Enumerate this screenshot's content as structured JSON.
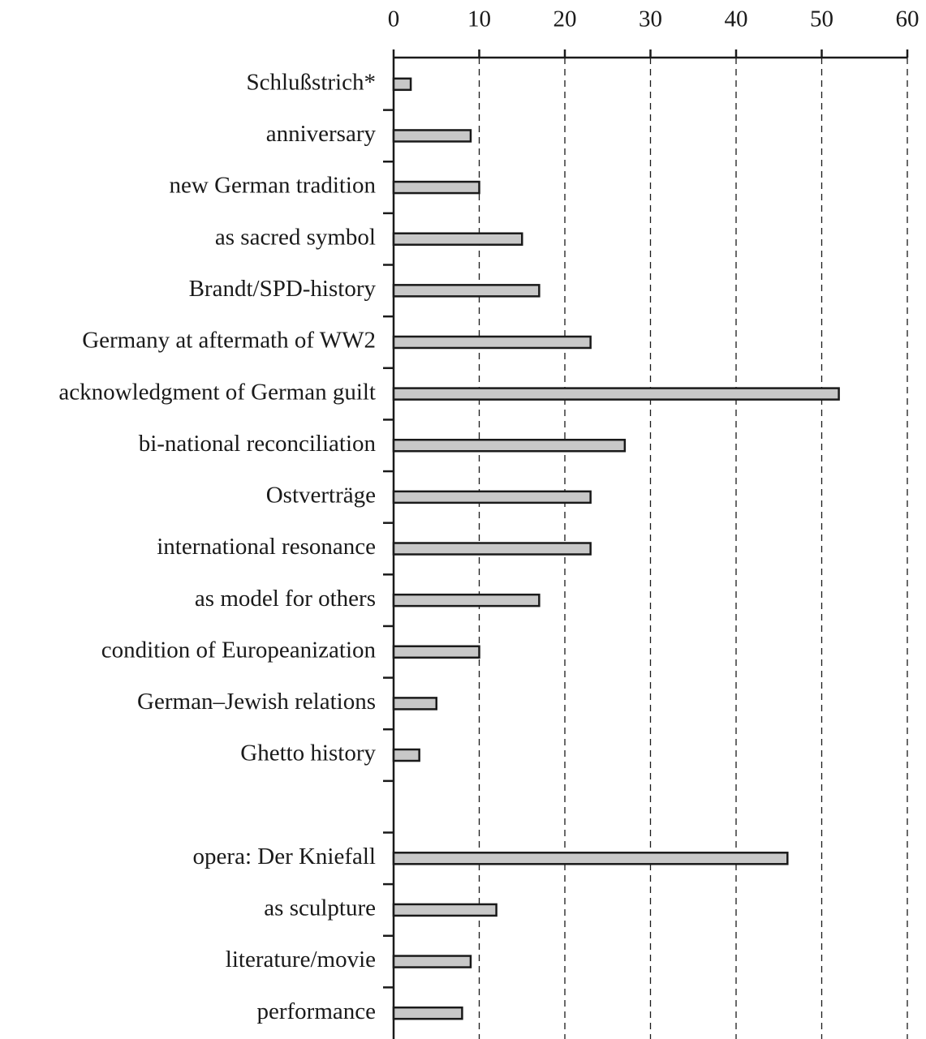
{
  "chart_data": {
    "type": "hbar",
    "categories": [
      "Schlußstrich*",
      "anniversary",
      "new German tradition",
      "as sacred symbol",
      "Brandt/SPD-history",
      "Germany at aftermath of WW2",
      "acknowledgment of German guilt",
      "bi-national reconciliation",
      "Ostverträge",
      "international resonance",
      "as model for others",
      "condition of Europeanization",
      "German–Jewish relations",
      "Ghetto history",
      null,
      "opera: Der Kniefall",
      "as sculpture",
      "literature/movie",
      "performance"
    ],
    "values": [
      2,
      9,
      10,
      15,
      17,
      23,
      52,
      27,
      23,
      23,
      17,
      10,
      5,
      3,
      null,
      46,
      12,
      9,
      8
    ],
    "color": "#c8c8c8",
    "xlim": [
      0,
      60
    ],
    "xticks": [
      0,
      10,
      20,
      30,
      40,
      50,
      60
    ],
    "grid": true
  }
}
